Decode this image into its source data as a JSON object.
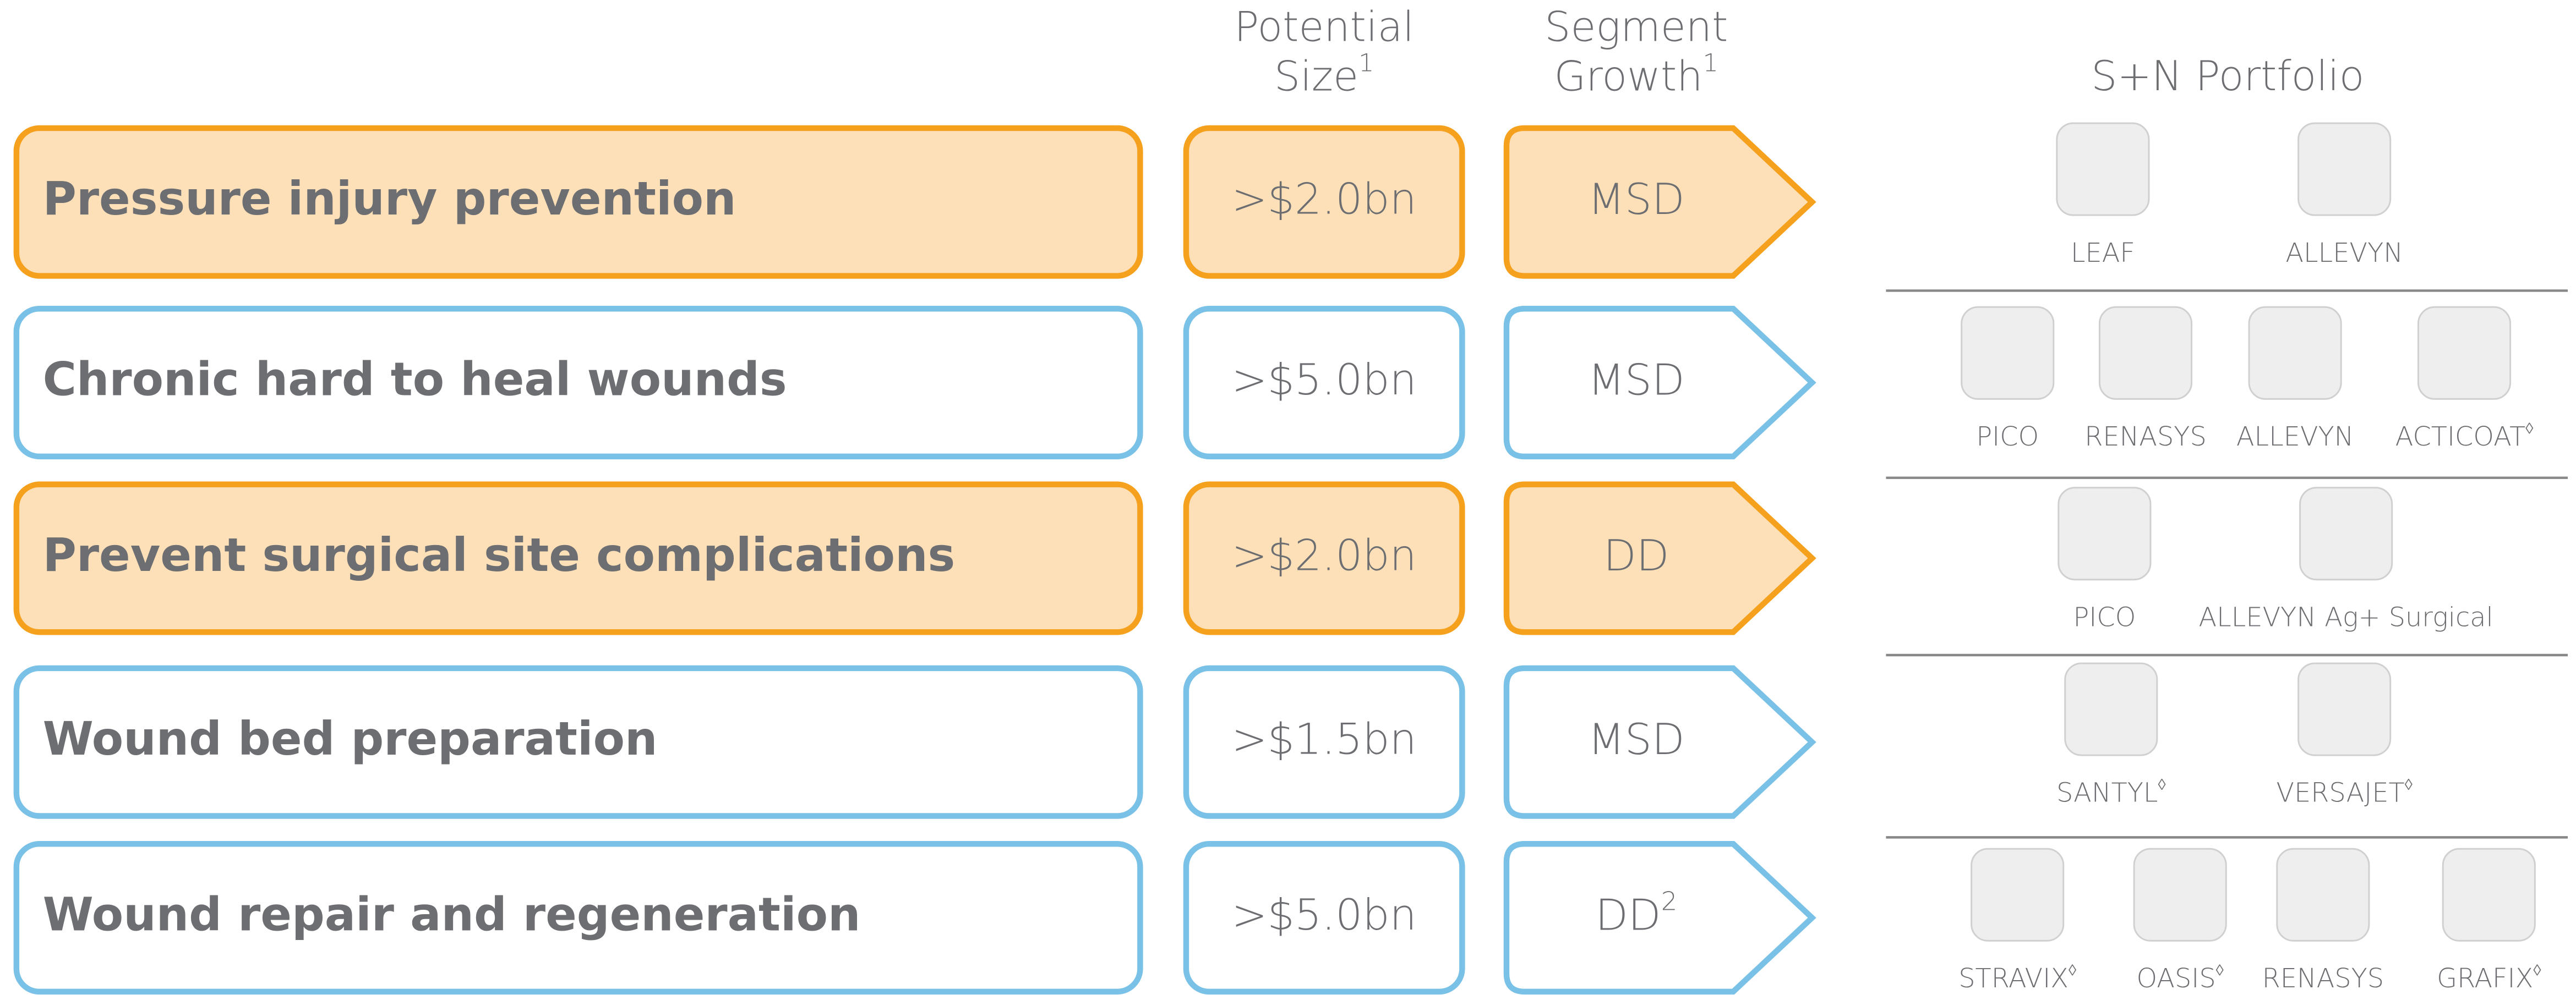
{
  "header": {
    "size_label": {
      "lines": [
        "Potential",
        "Size"
      ],
      "note": "1"
    },
    "growth_label": {
      "lines": [
        "Segment",
        "Growth"
      ],
      "note": "1"
    },
    "portfolio_title": "S+N Portfolio"
  },
  "rows": [
    {
      "name": "Pressure injury prevention",
      "size": ">$2.0bn",
      "growth": "MSD",
      "color": "#f5a11e",
      "fill": "#fde0b8",
      "products": [
        {
          "name": "LEAF"
        },
        {
          "name": "ALLEVYN"
        }
      ]
    },
    {
      "name": "Chronic hard to heal wounds",
      "size": ">$5.0bn",
      "growth": "MSD",
      "color": "#79c1e6",
      "fill": "#ffffff",
      "products": [
        {
          "name": "PICO"
        },
        {
          "name": "RENASYS"
        },
        {
          "name": "ALLEVYN"
        },
        {
          "name": "ACTICOAT",
          "mark": "◊"
        }
      ]
    },
    {
      "name": "Prevent surgical site complications",
      "size": ">$2.0bn",
      "growth": "DD",
      "color": "#f5a11e",
      "fill": "#fde0b8",
      "products": [
        {
          "name": "PICO"
        },
        {
          "name": "ALLEVYN Ag+ Surgical"
        }
      ]
    },
    {
      "name": "Wound bed preparation",
      "size": ">$1.5bn",
      "growth": "MSD",
      "color": "#79c1e6",
      "fill": "#ffffff",
      "products": [
        {
          "name": "SANTYL",
          "mark": "◊"
        },
        {
          "name": "VERSAJET",
          "mark": "◊"
        }
      ]
    },
    {
      "name": "Wound repair and regeneration",
      "size": ">$5.0bn",
      "growth": "DD",
      "growth_note": "2",
      "color": "#79c1e6",
      "fill": "#ffffff",
      "products": [
        {
          "name": "STRAVIX",
          "mark": "◊"
        },
        {
          "name": "OASIS",
          "mark": "◊"
        },
        {
          "name": "RENASYS"
        },
        {
          "name": "GRAFIX",
          "mark": "◊"
        }
      ]
    }
  ]
}
